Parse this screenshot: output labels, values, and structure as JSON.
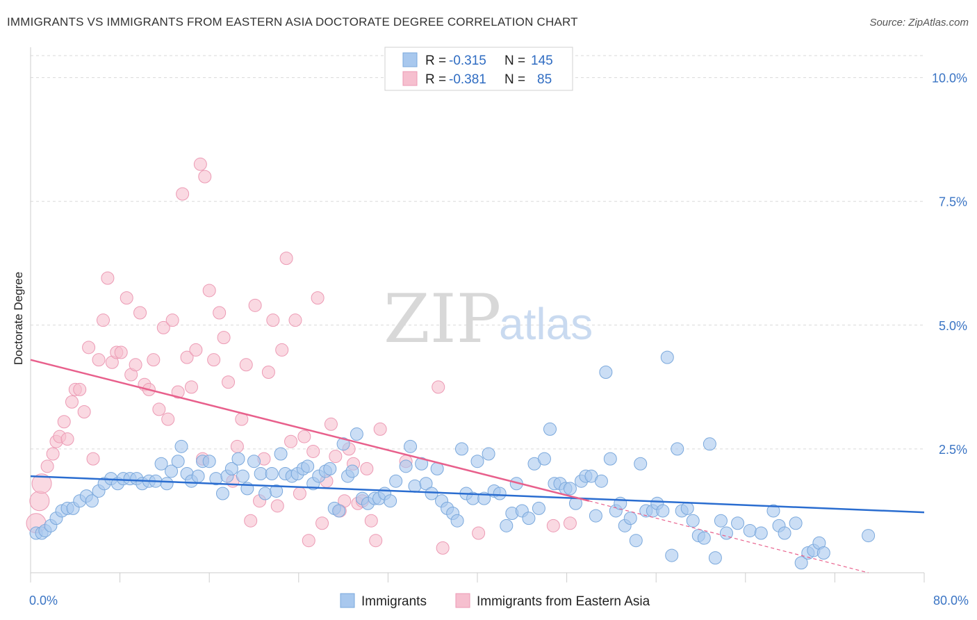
{
  "title": "IMMIGRANTS VS IMMIGRANTS FROM EASTERN ASIA DOCTORATE DEGREE CORRELATION CHART",
  "source": "Source: ZipAtlas.com",
  "watermark": {
    "zip": "ZIP",
    "atlas": "atlas"
  },
  "colors": {
    "blue_fill": "#a8c8ee",
    "blue_stroke": "#7aa8dc",
    "blue_line": "#2a6dd0",
    "pink_fill": "#f6bfcf",
    "pink_stroke": "#ec9ab4",
    "pink_line": "#e8608c",
    "grid": "#d9d9d9",
    "axis_label": "#3a74c4"
  },
  "legend": {
    "rows": [
      {
        "r_label": "R =",
        "r_value": "-0.315",
        "n_label": "N =",
        "n_value": "145",
        "series": "blue"
      },
      {
        "r_label": "R =",
        "r_value": "-0.381",
        "n_label": "N =",
        "n_value": "85",
        "series": "pink"
      }
    ]
  },
  "bottom_legend": [
    "Immigrants",
    "Immigrants from Eastern Asia"
  ],
  "chart_data": {
    "type": "scatter",
    "title": "IMMIGRANTS VS IMMIGRANTS FROM EASTERN ASIA DOCTORATE DEGREE CORRELATION CHART",
    "xlabel": "",
    "ylabel": "Doctorate Degree",
    "xlim": [
      0,
      80
    ],
    "ylim": [
      0,
      10.5
    ],
    "x_tick_labels": [
      "0.0%",
      "80.0%"
    ],
    "y_ticks": [
      2.5,
      5.0,
      7.5,
      10.0
    ],
    "y_tick_labels": [
      "2.5%",
      "5.0%",
      "7.5%",
      "10.0%"
    ],
    "grid": true,
    "legend_position": "top-center",
    "series": [
      {
        "name": "Immigrants",
        "color": "blue",
        "r": -0.315,
        "n": 145,
        "trend": {
          "x": [
            0,
            80
          ],
          "y": [
            1.95,
            1.22
          ]
        },
        "points": [
          [
            0.5,
            0.8
          ],
          [
            1.0,
            0.8
          ],
          [
            1.3,
            0.85
          ],
          [
            1.8,
            0.95
          ],
          [
            2.3,
            1.1
          ],
          [
            2.8,
            1.25
          ],
          [
            3.3,
            1.3
          ],
          [
            3.8,
            1.3
          ],
          [
            4.4,
            1.45
          ],
          [
            5.0,
            1.55
          ],
          [
            5.5,
            1.45
          ],
          [
            6.1,
            1.65
          ],
          [
            6.6,
            1.8
          ],
          [
            7.2,
            1.9
          ],
          [
            7.8,
            1.8
          ],
          [
            8.3,
            1.9
          ],
          [
            8.9,
            1.9
          ],
          [
            9.5,
            1.9
          ],
          [
            10.0,
            1.8
          ],
          [
            10.6,
            1.85
          ],
          [
            11.2,
            1.85
          ],
          [
            11.7,
            2.2
          ],
          [
            12.2,
            1.8
          ],
          [
            12.6,
            2.05
          ],
          [
            13.2,
            2.25
          ],
          [
            13.5,
            2.55
          ],
          [
            14.0,
            2.0
          ],
          [
            14.4,
            1.85
          ],
          [
            15.0,
            1.95
          ],
          [
            15.4,
            2.25
          ],
          [
            16.0,
            2.25
          ],
          [
            16.6,
            1.9
          ],
          [
            17.2,
            1.6
          ],
          [
            17.6,
            1.95
          ],
          [
            18.0,
            2.1
          ],
          [
            18.6,
            2.3
          ],
          [
            19.0,
            1.95
          ],
          [
            19.4,
            1.7
          ],
          [
            20.0,
            2.25
          ],
          [
            20.6,
            2.0
          ],
          [
            21.0,
            1.6
          ],
          [
            21.6,
            2.0
          ],
          [
            22.0,
            1.65
          ],
          [
            22.4,
            2.4
          ],
          [
            22.8,
            2.0
          ],
          [
            23.4,
            1.95
          ],
          [
            23.9,
            2.0
          ],
          [
            24.4,
            2.1
          ],
          [
            24.8,
            2.15
          ],
          [
            25.3,
            1.8
          ],
          [
            25.8,
            1.95
          ],
          [
            26.4,
            2.05
          ],
          [
            26.8,
            2.1
          ],
          [
            27.2,
            1.3
          ],
          [
            27.6,
            1.25
          ],
          [
            28.0,
            2.6
          ],
          [
            28.4,
            1.95
          ],
          [
            28.8,
            2.05
          ],
          [
            29.2,
            2.8
          ],
          [
            29.7,
            1.5
          ],
          [
            30.2,
            1.4
          ],
          [
            30.8,
            1.5
          ],
          [
            31.2,
            1.5
          ],
          [
            31.7,
            1.6
          ],
          [
            32.2,
            1.45
          ],
          [
            32.7,
            1.85
          ],
          [
            33.6,
            2.15
          ],
          [
            34.0,
            2.55
          ],
          [
            34.4,
            1.75
          ],
          [
            35.0,
            2.2
          ],
          [
            35.4,
            1.8
          ],
          [
            35.9,
            1.6
          ],
          [
            36.4,
            2.1
          ],
          [
            36.8,
            1.45
          ],
          [
            37.3,
            1.3
          ],
          [
            37.8,
            1.2
          ],
          [
            38.2,
            1.05
          ],
          [
            38.6,
            2.5
          ],
          [
            39.0,
            1.6
          ],
          [
            39.6,
            1.5
          ],
          [
            40.0,
            2.25
          ],
          [
            40.6,
            1.5
          ],
          [
            41.0,
            2.4
          ],
          [
            41.5,
            1.65
          ],
          [
            42.0,
            1.6
          ],
          [
            42.6,
            0.95
          ],
          [
            43.1,
            1.2
          ],
          [
            43.5,
            1.8
          ],
          [
            44.0,
            1.25
          ],
          [
            44.6,
            1.1
          ],
          [
            45.1,
            2.2
          ],
          [
            45.5,
            1.3
          ],
          [
            46.0,
            2.3
          ],
          [
            46.5,
            2.9
          ],
          [
            46.9,
            1.8
          ],
          [
            47.4,
            1.8
          ],
          [
            47.9,
            1.7
          ],
          [
            48.3,
            1.7
          ],
          [
            48.8,
            1.4
          ],
          [
            49.3,
            1.85
          ],
          [
            49.7,
            1.95
          ],
          [
            50.2,
            1.95
          ],
          [
            50.6,
            1.15
          ],
          [
            51.1,
            1.85
          ],
          [
            51.5,
            4.05
          ],
          [
            51.9,
            2.3
          ],
          [
            52.4,
            1.25
          ],
          [
            52.8,
            1.4
          ],
          [
            53.2,
            0.95
          ],
          [
            53.7,
            1.1
          ],
          [
            54.2,
            0.65
          ],
          [
            54.6,
            2.2
          ],
          [
            55.1,
            1.25
          ],
          [
            55.7,
            1.25
          ],
          [
            56.1,
            1.4
          ],
          [
            56.6,
            1.25
          ],
          [
            57.0,
            4.35
          ],
          [
            57.4,
            0.35
          ],
          [
            57.9,
            2.5
          ],
          [
            58.3,
            1.25
          ],
          [
            58.8,
            1.3
          ],
          [
            59.3,
            1.05
          ],
          [
            59.8,
            0.75
          ],
          [
            60.3,
            0.7
          ],
          [
            60.8,
            2.6
          ],
          [
            61.3,
            0.3
          ],
          [
            61.8,
            1.05
          ],
          [
            62.3,
            0.8
          ],
          [
            63.3,
            1.0
          ],
          [
            64.4,
            0.85
          ],
          [
            65.4,
            0.8
          ],
          [
            66.5,
            1.25
          ],
          [
            67.0,
            0.95
          ],
          [
            67.5,
            0.8
          ],
          [
            68.5,
            1.0
          ],
          [
            69.0,
            0.2
          ],
          [
            69.6,
            0.4
          ],
          [
            70.1,
            0.45
          ],
          [
            70.6,
            0.6
          ],
          [
            71.0,
            0.4
          ],
          [
            75.0,
            0.75
          ]
        ]
      },
      {
        "name": "Immigrants from Eastern Asia",
        "color": "pink",
        "r": -0.381,
        "n": 85,
        "trend": {
          "x": [
            0,
            50
          ],
          "y": [
            4.3,
            1.45
          ]
        },
        "trend_dashed": {
          "x": [
            50,
            75
          ],
          "y": [
            1.45,
            0.0
          ]
        },
        "points": [
          [
            0.5,
            1.0
          ],
          [
            0.8,
            1.45
          ],
          [
            1.0,
            1.8
          ],
          [
            1.5,
            2.15
          ],
          [
            2.0,
            2.4
          ],
          [
            2.3,
            2.65
          ],
          [
            2.6,
            2.75
          ],
          [
            3.0,
            3.05
          ],
          [
            3.3,
            2.7
          ],
          [
            3.7,
            3.45
          ],
          [
            4.0,
            3.7
          ],
          [
            4.4,
            3.7
          ],
          [
            4.8,
            3.25
          ],
          [
            5.2,
            4.55
          ],
          [
            5.6,
            2.3
          ],
          [
            6.1,
            4.3
          ],
          [
            6.5,
            5.1
          ],
          [
            6.9,
            5.95
          ],
          [
            7.3,
            4.25
          ],
          [
            7.7,
            4.45
          ],
          [
            8.1,
            4.45
          ],
          [
            8.6,
            5.55
          ],
          [
            9.0,
            4.0
          ],
          [
            9.4,
            4.2
          ],
          [
            9.8,
            5.25
          ],
          [
            10.2,
            3.8
          ],
          [
            10.6,
            3.7
          ],
          [
            11.0,
            4.3
          ],
          [
            11.5,
            3.3
          ],
          [
            11.9,
            4.95
          ],
          [
            12.3,
            3.1
          ],
          [
            12.7,
            5.1
          ],
          [
            13.2,
            3.65
          ],
          [
            13.6,
            7.65
          ],
          [
            14.0,
            4.35
          ],
          [
            14.4,
            3.75
          ],
          [
            14.8,
            4.5
          ],
          [
            15.2,
            8.25
          ],
          [
            15.6,
            8.0
          ],
          [
            16.0,
            5.7
          ],
          [
            16.4,
            4.3
          ],
          [
            16.9,
            5.25
          ],
          [
            17.3,
            4.75
          ],
          [
            17.7,
            3.85
          ],
          [
            18.1,
            1.85
          ],
          [
            18.5,
            2.55
          ],
          [
            18.9,
            3.1
          ],
          [
            19.3,
            4.2
          ],
          [
            19.7,
            1.05
          ],
          [
            20.1,
            5.4
          ],
          [
            20.5,
            1.45
          ],
          [
            20.9,
            2.3
          ],
          [
            21.3,
            4.05
          ],
          [
            21.7,
            5.1
          ],
          [
            22.1,
            1.35
          ],
          [
            22.5,
            4.5
          ],
          [
            22.9,
            6.35
          ],
          [
            23.3,
            2.65
          ],
          [
            23.7,
            5.1
          ],
          [
            24.1,
            1.6
          ],
          [
            24.5,
            2.75
          ],
          [
            24.9,
            0.65
          ],
          [
            25.3,
            2.45
          ],
          [
            25.7,
            5.55
          ],
          [
            26.1,
            1.0
          ],
          [
            26.5,
            1.85
          ],
          [
            26.9,
            3.0
          ],
          [
            27.3,
            2.35
          ],
          [
            27.7,
            1.25
          ],
          [
            28.1,
            1.45
          ],
          [
            28.5,
            2.5
          ],
          [
            28.9,
            2.2
          ],
          [
            29.3,
            1.4
          ],
          [
            29.7,
            1.45
          ],
          [
            30.1,
            2.1
          ],
          [
            30.5,
            1.05
          ],
          [
            30.9,
            0.65
          ],
          [
            31.3,
            2.9
          ],
          [
            36.5,
            3.75
          ],
          [
            36.9,
            0.5
          ],
          [
            40.1,
            0.8
          ],
          [
            46.8,
            0.95
          ],
          [
            48.3,
            1.0
          ],
          [
            15.4,
            2.3
          ],
          [
            33.6,
            2.25
          ]
        ]
      }
    ]
  }
}
